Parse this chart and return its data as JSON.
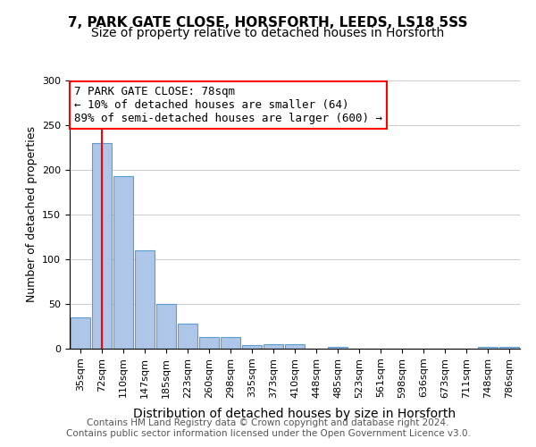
{
  "title1": "7, PARK GATE CLOSE, HORSFORTH, LEEDS, LS18 5SS",
  "title2": "Size of property relative to detached houses in Horsforth",
  "xlabel": "Distribution of detached houses by size in Horsforth",
  "ylabel": "Number of detached properties",
  "bar_labels": [
    "35sqm",
    "72sqm",
    "110sqm",
    "147sqm",
    "185sqm",
    "223sqm",
    "260sqm",
    "298sqm",
    "335sqm",
    "373sqm",
    "410sqm",
    "448sqm",
    "485sqm",
    "523sqm",
    "561sqm",
    "598sqm",
    "636sqm",
    "673sqm",
    "711sqm",
    "748sqm",
    "786sqm"
  ],
  "bar_values": [
    35,
    230,
    193,
    110,
    50,
    28,
    13,
    13,
    4,
    5,
    5,
    0,
    2,
    0,
    0,
    0,
    0,
    0,
    0,
    2,
    2
  ],
  "bar_color": "#aec6e8",
  "bar_edge_color": "#5a9fd4",
  "red_line_x": 1,
  "annotation_box_text": "7 PARK GATE CLOSE: 78sqm\n← 10% of detached houses are smaller (64)\n89% of semi-detached houses are larger (600) →",
  "ylim": [
    0,
    300
  ],
  "yticks": [
    0,
    50,
    100,
    150,
    200,
    250,
    300
  ],
  "footer": "Contains HM Land Registry data © Crown copyright and database right 2024.\nContains public sector information licensed under the Open Government Licence v3.0.",
  "title1_fontsize": 11,
  "title2_fontsize": 10,
  "xlabel_fontsize": 10,
  "ylabel_fontsize": 9,
  "tick_fontsize": 8,
  "annotation_fontsize": 9,
  "footer_fontsize": 7.5,
  "background_color": "#ffffff"
}
